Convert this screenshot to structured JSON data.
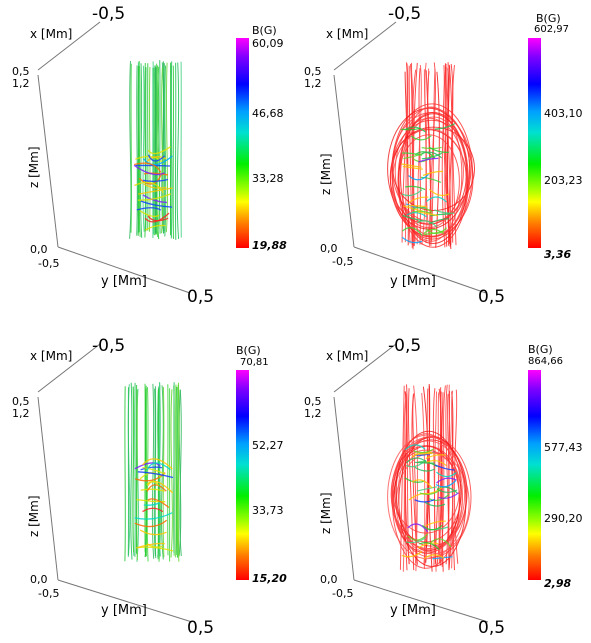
{
  "panels": [
    {
      "id": "top-left",
      "axis_x_label": "x [Mm]",
      "x_tick": "-0,5",
      "top_ticks": [
        "0,5",
        "1,2"
      ],
      "z_label": "z [Mm]",
      "origin_label": "0,0",
      "y_tick_left": "-0,5",
      "y_label": "y [Mm]",
      "y_tick_right": "0,5",
      "colorbar": {
        "title": "B(G)",
        "max": "60,09",
        "mid_high": "46,68",
        "mid_low": "33,28",
        "min": "19,88"
      },
      "dominant": "green"
    },
    {
      "id": "top-right",
      "axis_x_label": "x [Mm]",
      "x_tick": "-0,5",
      "top_ticks": [
        "0,5",
        "1,2"
      ],
      "z_label": "z [Mm]",
      "origin_label": "0,0",
      "y_tick_left": "-0,5",
      "y_label": "y [Mm]",
      "y_tick_right": "0,5",
      "colorbar": {
        "title": "B(G)",
        "max": "602,97",
        "mid_high": "403,10",
        "mid_low": "203,23",
        "min": "3,36"
      },
      "dominant": "red"
    },
    {
      "id": "bottom-left",
      "axis_x_label": "x [Mm]",
      "x_tick": "-0,5",
      "top_ticks": [
        "0,5",
        "1,2"
      ],
      "z_label": "z [Mm]",
      "origin_label": "0,0",
      "y_tick_left": "-0,5",
      "y_label": "y [Mm]",
      "y_tick_right": "0,5",
      "colorbar": {
        "title": "B(G)",
        "max": "70,81",
        "mid_high": "52,27",
        "mid_low": "33,73",
        "min": "15,20"
      },
      "dominant": "green"
    },
    {
      "id": "bottom-right",
      "axis_x_label": "x [Mm]",
      "x_tick": "-0,5",
      "top_ticks": [
        "0,5",
        "1,2"
      ],
      "z_label": "z [Mm]",
      "origin_label": "0,0",
      "y_tick_left": "-0,5",
      "y_label": "y [Mm]",
      "y_tick_right": "0,5",
      "colorbar": {
        "title": "B(G)",
        "max": "864,66",
        "mid_high": "577,43",
        "mid_low": "290,20",
        "min": "2,98"
      },
      "dominant": "red"
    }
  ]
}
